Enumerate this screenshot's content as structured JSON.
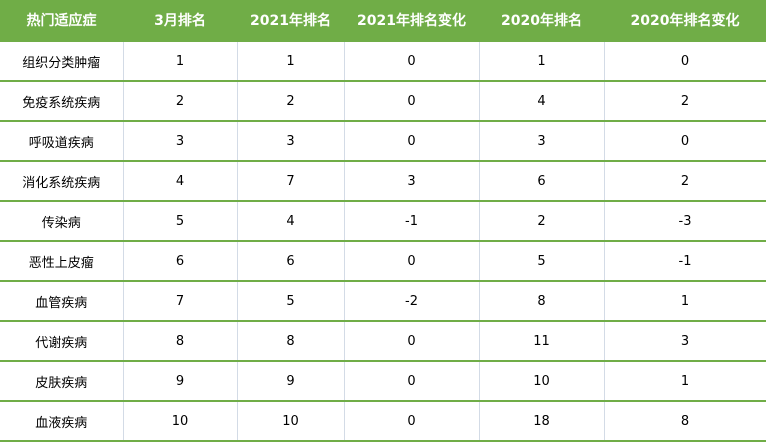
{
  "colors": {
    "header_bg": "#70ad47",
    "row_border": "#70ad47",
    "col_border": "#d3dbe6"
  },
  "table": {
    "headers": [
      "热门适应症",
      "3月排名",
      "2021年排名",
      "2021年排名变化",
      "2020年排名",
      "2020年排名变化"
    ],
    "rows": [
      [
        "组织分类肿瘤",
        "1",
        "1",
        "0",
        "1",
        "0"
      ],
      [
        "免疫系统疾病",
        "2",
        "2",
        "0",
        "4",
        "2"
      ],
      [
        "呼吸道疾病",
        "3",
        "3",
        "0",
        "3",
        "0"
      ],
      [
        "消化系统疾病",
        "4",
        "7",
        "3",
        "6",
        "2"
      ],
      [
        "传染病",
        "5",
        "4",
        "-1",
        "2",
        "-3"
      ],
      [
        "恶性上皮瘤",
        "6",
        "6",
        "0",
        "5",
        "-1"
      ],
      [
        "血管疾病",
        "7",
        "5",
        "-2",
        "8",
        "1"
      ],
      [
        "代谢疾病",
        "8",
        "8",
        "0",
        "11",
        "3"
      ],
      [
        "皮肤疾病",
        "9",
        "9",
        "0",
        "10",
        "1"
      ],
      [
        "血液疾病",
        "10",
        "10",
        "0",
        "18",
        "8"
      ]
    ]
  }
}
